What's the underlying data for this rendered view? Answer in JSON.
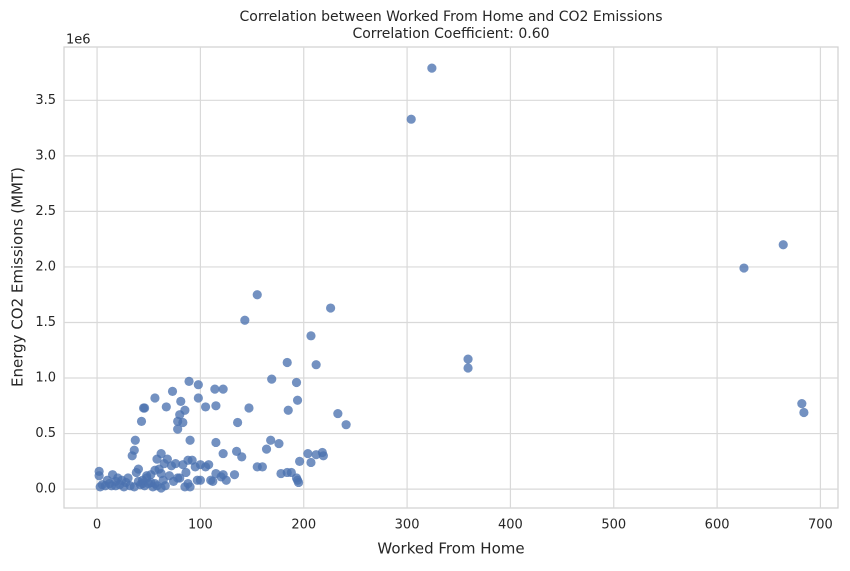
{
  "chart_data": {
    "type": "scatter",
    "title": "Correlation between Worked From Home and CO2 Emissions",
    "subtitle": "Correlation Coefficient: 0.60",
    "x_label": "Worked From Home",
    "y_label": "Energy CO2 Emissions (MMT)",
    "y_offset_label": "1e6",
    "color": "#4c72b0",
    "grid": true,
    "xlim": [
      -32,
      717
    ],
    "ylim": [
      -170000,
      3980000
    ],
    "xticks": [
      0,
      100,
      200,
      300,
      400,
      500,
      600,
      700
    ],
    "yticks": [
      {
        "value": 0,
        "label": "0.0"
      },
      {
        "value": 500000,
        "label": "0.5"
      },
      {
        "value": 1000000,
        "label": "1.0"
      },
      {
        "value": 1500000,
        "label": "1.5"
      },
      {
        "value": 2000000,
        "label": "2.0"
      },
      {
        "value": 2500000,
        "label": "2.5"
      },
      {
        "value": 3000000,
        "label": "3.0"
      },
      {
        "value": 3500000,
        "label": "3.5"
      }
    ],
    "x": [
      324,
      304,
      664,
      626,
      155,
      226,
      143,
      207,
      359,
      359,
      184,
      212,
      169,
      193,
      89,
      98,
      122,
      114,
      73,
      56,
      98,
      81,
      194,
      682,
      684,
      45,
      46,
      67,
      105,
      115,
      147,
      85,
      185,
      233,
      80,
      78,
      83,
      43,
      136,
      241,
      78,
      37,
      115,
      168,
      176,
      90,
      135,
      140,
      122,
      164,
      204,
      218,
      219,
      212,
      207,
      196,
      184,
      188,
      178,
      193,
      195,
      194,
      160,
      155,
      120,
      122,
      115,
      110,
      105,
      100,
      108,
      95,
      92,
      88,
      83,
      86,
      80,
      88,
      85,
      90,
      97,
      62,
      58,
      65,
      60,
      56,
      52,
      48,
      44,
      40,
      38,
      34,
      36,
      30,
      28,
      24,
      20,
      18,
      15,
      12,
      10,
      8,
      5,
      3,
      2,
      2,
      14,
      18,
      22,
      26,
      32,
      36,
      42,
      46,
      50,
      54,
      58,
      62,
      66,
      70,
      74,
      78,
      68,
      72,
      76,
      62,
      64,
      56,
      52,
      48,
      44,
      40,
      100,
      112,
      125,
      133
    ],
    "values": [
      3790000,
      3330000,
      2200000,
      1990000,
      1750000,
      1630000,
      1520000,
      1380000,
      1170000,
      1090000,
      1140000,
      1120000,
      990000,
      960000,
      970000,
      940000,
      900000,
      900000,
      880000,
      820000,
      820000,
      790000,
      800000,
      770000,
      690000,
      730000,
      730000,
      740000,
      740000,
      750000,
      730000,
      710000,
      710000,
      680000,
      670000,
      610000,
      600000,
      610000,
      600000,
      580000,
      540000,
      440000,
      420000,
      440000,
      410000,
      440000,
      340000,
      290000,
      320000,
      360000,
      320000,
      330000,
      300000,
      310000,
      240000,
      250000,
      150000,
      150000,
      140000,
      100000,
      60000,
      80000,
      200000,
      200000,
      110000,
      130000,
      140000,
      80000,
      200000,
      220000,
      220000,
      200000,
      260000,
      260000,
      220000,
      150000,
      100000,
      50000,
      20000,
      20000,
      80000,
      320000,
      270000,
      230000,
      180000,
      170000,
      130000,
      100000,
      50000,
      180000,
      150000,
      300000,
      350000,
      100000,
      60000,
      80000,
      100000,
      70000,
      130000,
      50000,
      80000,
      30000,
      40000,
      20000,
      160000,
      120000,
      30000,
      30000,
      40000,
      20000,
      30000,
      20000,
      40000,
      30000,
      50000,
      20000,
      30000,
      10000,
      30000,
      120000,
      70000,
      100000,
      270000,
      210000,
      230000,
      140000,
      80000,
      50000,
      60000,
      120000,
      80000,
      70000,
      80000,
      70000,
      80000,
      130000
    ]
  }
}
